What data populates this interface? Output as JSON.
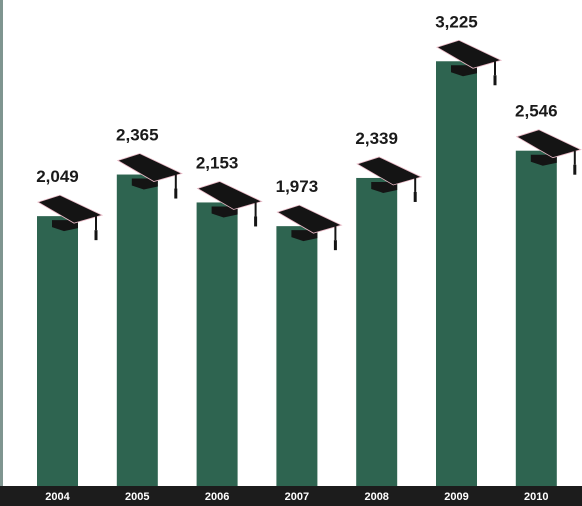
{
  "chart_data": {
    "type": "bar",
    "title": "",
    "xlabel": "",
    "ylabel": "",
    "categories": [
      "2004",
      "2005",
      "2006",
      "2007",
      "2008",
      "2009",
      "2010"
    ],
    "values": [
      2049,
      2365,
      2153,
      1973,
      2339,
      3225,
      2546
    ],
    "value_labels": [
      "2,049",
      "2,365",
      "2,153",
      "1,973",
      "2,339",
      "3,225",
      "2,546"
    ],
    "ylim": [
      0,
      3500
    ],
    "grid": false,
    "legend": "none",
    "bar_icon": "graduation-cap-icon",
    "colors": {
      "bar": "#2e6450",
      "axis_band": "#1c1c1c",
      "tick_text": "#ffffff",
      "value_text": "#1a1a1a",
      "cap": "#141414",
      "cap_edge": "#e8b7c4",
      "left_rule": "#7f9590"
    }
  }
}
